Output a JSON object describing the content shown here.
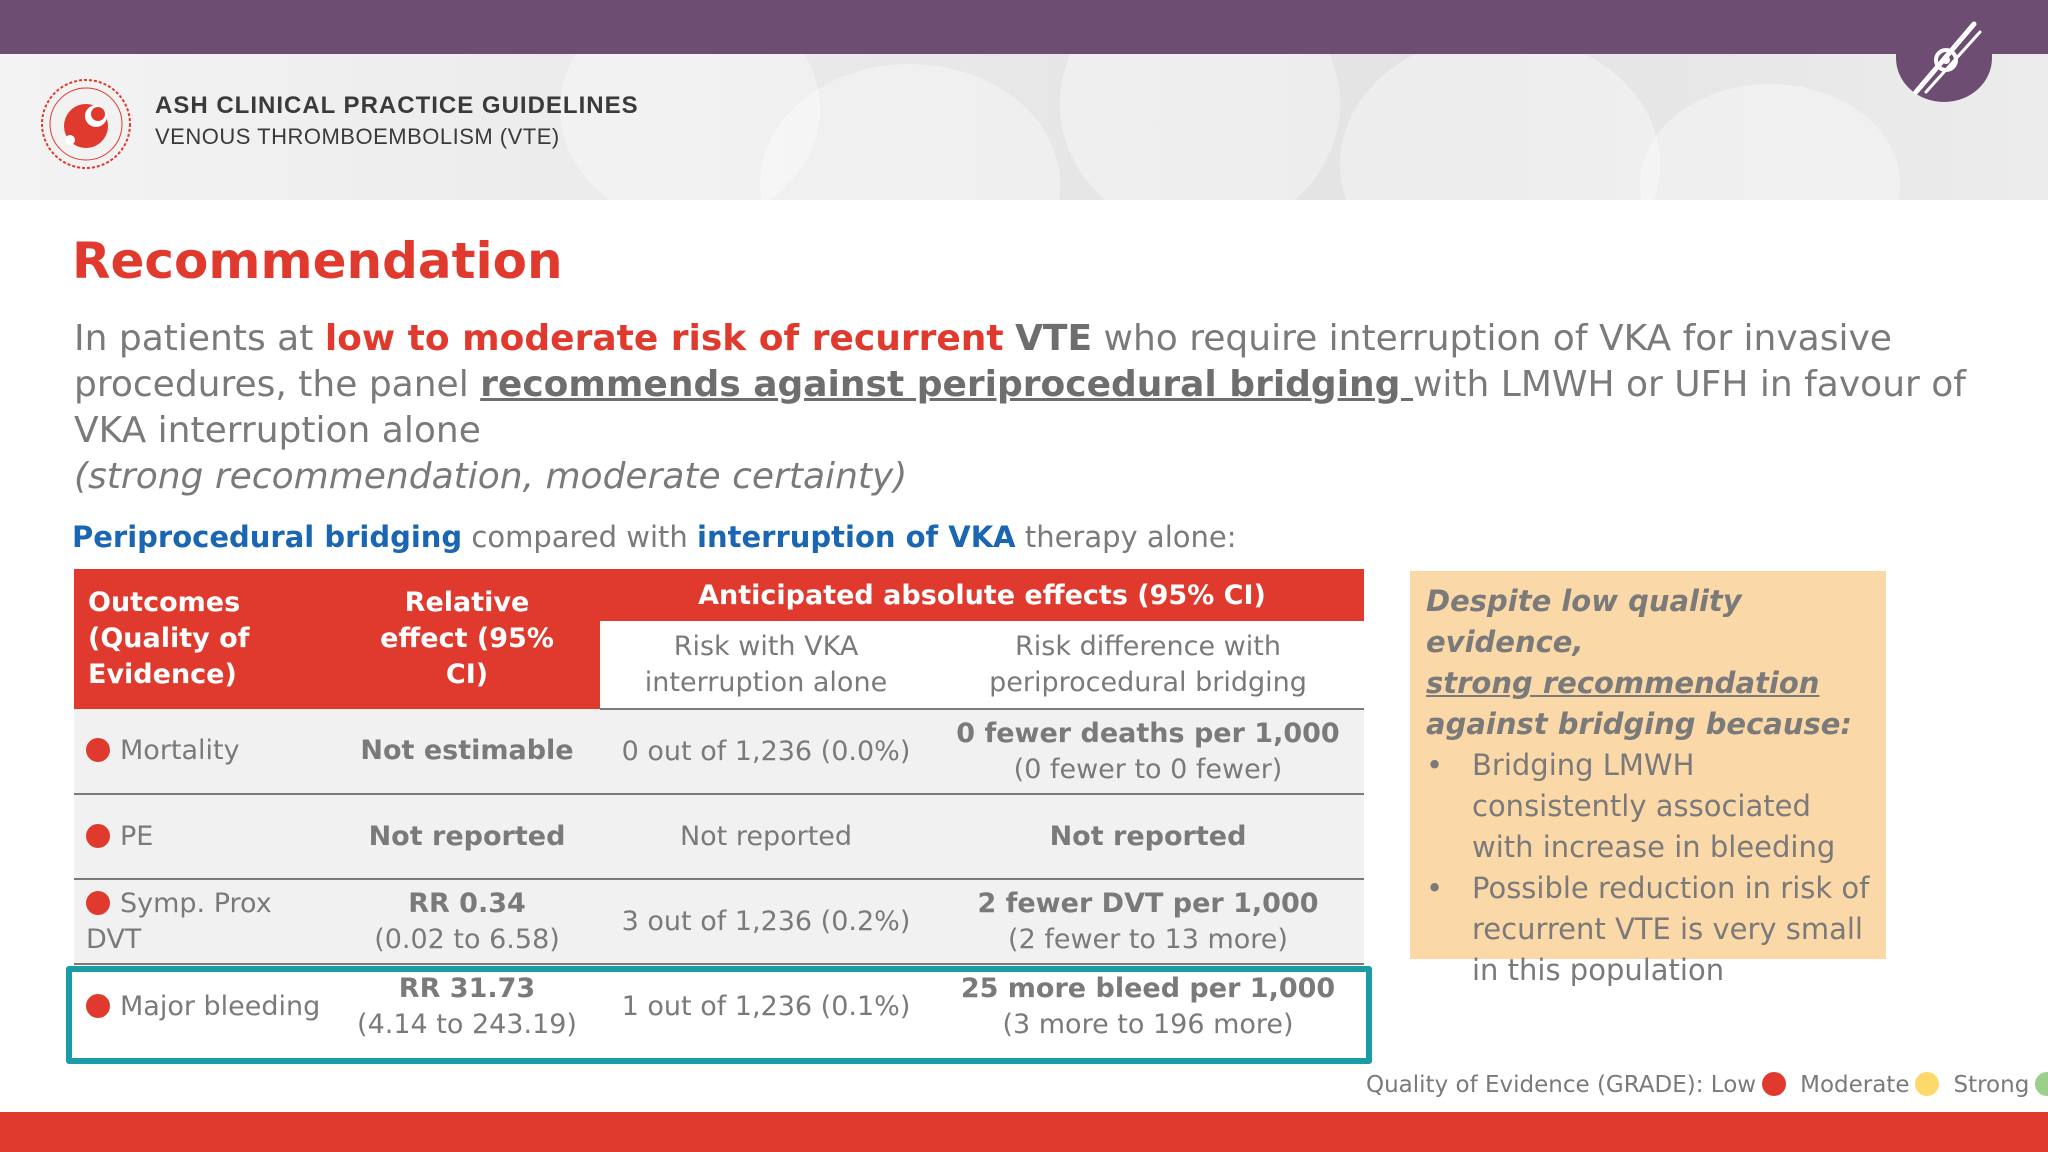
{
  "colors": {
    "purple": "#6e4d73",
    "red": "#e03a2e",
    "blue": "#1a66b3",
    "teal": "#1a9ba6",
    "peach": "#fbd8a7",
    "yellow": "#fcd96a",
    "green": "#9ccf8c"
  },
  "header": {
    "title": "ASH CLINICAL PRACTICE GUIDELINES",
    "subtitle": "VENOUS THROMBOEMBOLISM (VTE)",
    "logo_icon": "ash-logo-icon",
    "corner_icon": "vascular-icon"
  },
  "recommendation": {
    "heading": "Recommendation",
    "p1": "In patients at ",
    "p2": "low to moderate risk of recurrent",
    "p3": " ",
    "p4": "VTE",
    "p5": " who require interruption of VKA for invasive procedures, the panel ",
    "p6": "recommends against periprocedural bridging ",
    "p7": "with LMWH or UFH in favour of VKA interruption alone",
    "p8": "(strong recommendation, moderate certainty)"
  },
  "comparison": {
    "a": "Periprocedural bridging",
    "b": " compared with ",
    "c": "interruption of VKA",
    "d": " therapy alone:"
  },
  "table": {
    "headers": {
      "outcomes": "Outcomes (Quality of Evidence)",
      "relative": "Relative effect (95% CI)",
      "anticipated": "Anticipated absolute effects (95% CI)",
      "risk_vka_1": "Risk with VKA",
      "risk_vka_2": "interruption alone",
      "risk_diff_1": "Risk difference with",
      "risk_diff_2": "periprocedural bridging"
    },
    "rows": [
      {
        "outcome": "Mortality",
        "rel1": "Not estimable",
        "rel2": "",
        "vka": "0 out of 1,236 (0.0%)",
        "diff1": "0 fewer deaths per 1,000",
        "diff2": "(0 fewer to 0 fewer)"
      },
      {
        "outcome": "PE",
        "rel1": "Not reported",
        "rel2": "",
        "vka": "Not reported",
        "diff1": "Not reported",
        "diff2": ""
      },
      {
        "outcome": "Symp. Prox DVT",
        "rel1": "RR 0.34",
        "rel2": "(0.02 to 6.58)",
        "vka": "3 out of 1,236 (0.2%)",
        "diff1": "2 fewer DVT per 1,000",
        "diff2": "(2 fewer to 13 more)"
      },
      {
        "outcome": "Major bleeding",
        "rel1": "RR 31.73",
        "rel2": "(4.14 to 243.19)",
        "vka": "1 out of 1,236 (0.1%)",
        "diff1": "25 more bleed per 1,000",
        "diff2": "(3 more to 196 more)"
      }
    ]
  },
  "sidebox": {
    "t1": "Despite low quality evidence,",
    "t2": "strong recommendation",
    "t3": "against bridging because:",
    "bullet1": "Bridging LMWH consistently associated with increase in bleeding",
    "bullet2": "Possible reduction in risk of recurrent VTE is very small in this population"
  },
  "legend": {
    "label": "Quality of Evidence (GRADE): Low",
    "moderate": "Moderate",
    "strong": "Strong"
  }
}
